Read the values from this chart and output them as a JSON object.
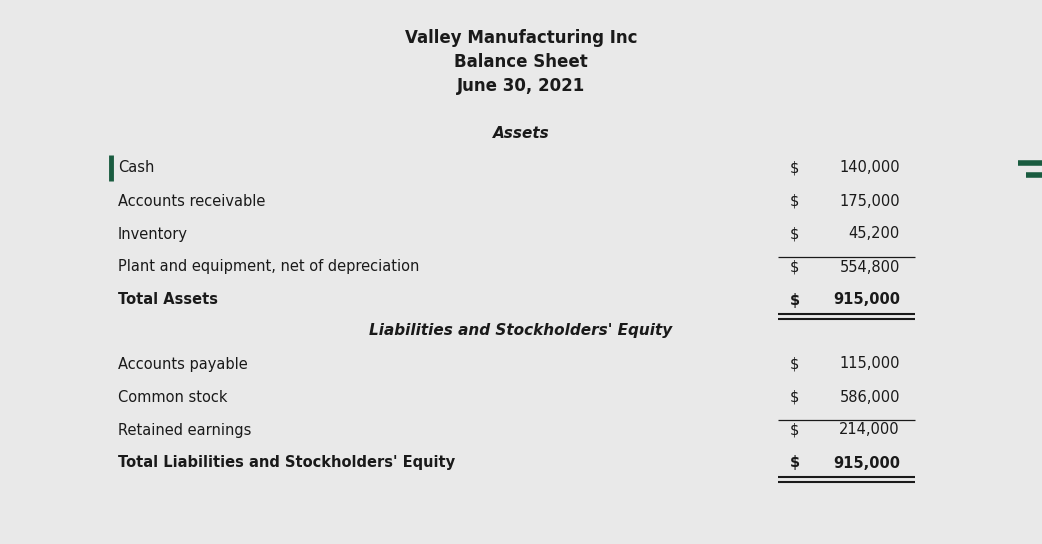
{
  "title_line1": "Valley Manufacturing Inc",
  "title_line2": "Balance Sheet",
  "title_line3": "June 30, 2021",
  "section1_header": "Assets",
  "section2_header": "Liabilities and Stockholders' Equity",
  "assets": [
    {
      "label": "Cash",
      "dollar": "$",
      "value": "140,000",
      "is_total": false,
      "single_line_above": false,
      "double_line_below": false
    },
    {
      "label": "Accounts receivable",
      "dollar": "$",
      "value": "175,000",
      "is_total": false,
      "single_line_above": false,
      "double_line_below": false
    },
    {
      "label": "Inventory",
      "dollar": "$",
      "value": "45,200",
      "is_total": false,
      "single_line_above": false,
      "double_line_below": false
    },
    {
      "label": "Plant and equipment, net of depreciation",
      "dollar": "$",
      "value": "554,800",
      "is_total": false,
      "single_line_above": true,
      "double_line_below": false
    },
    {
      "label": "Total Assets",
      "dollar": "$",
      "value": "915,000",
      "is_total": true,
      "single_line_above": false,
      "double_line_below": true
    }
  ],
  "liabilities": [
    {
      "label": "Accounts payable",
      "dollar": "$",
      "value": "115,000",
      "is_total": false,
      "single_line_above": false,
      "double_line_below": false
    },
    {
      "label": "Common stock",
      "dollar": "$",
      "value": "586,000",
      "is_total": false,
      "single_line_above": false,
      "double_line_below": false
    },
    {
      "label": "Retained earnings",
      "dollar": "$",
      "value": "214,000",
      "is_total": false,
      "single_line_above": true,
      "double_line_below": false
    },
    {
      "label": "Total Liabilities and Stockholders' Equity",
      "dollar": "$",
      "value": "915,000",
      "is_total": true,
      "single_line_above": false,
      "double_line_below": true
    }
  ],
  "bg_color": "#e9e9e9",
  "text_color": "#1a1a1a",
  "accent_color": "#1a5c40",
  "font_size_title": 12,
  "font_size_header": 11,
  "font_size_body": 10.5
}
